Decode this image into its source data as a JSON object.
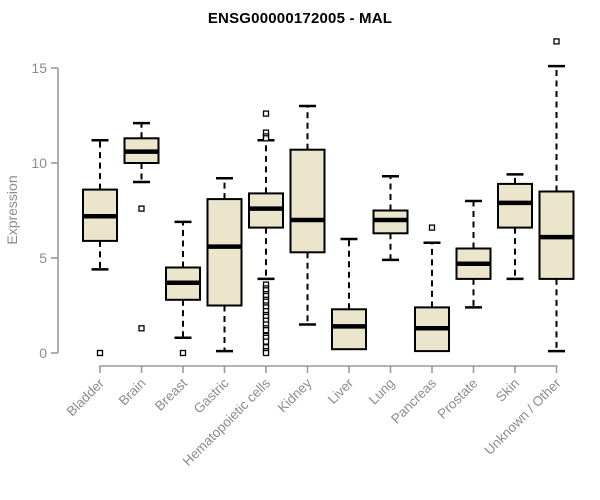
{
  "figure": {
    "title": "ENSG00000172005 - MAL",
    "background": "#ffffff"
  },
  "chart_data": {
    "type": "boxplot",
    "title": "ENSG00000172005 - MAL",
    "xlabel": "",
    "ylabel": "Expression",
    "ylim": [
      0,
      15
    ],
    "y_ticks": [
      0,
      5,
      10,
      15
    ],
    "grid": false,
    "legend": "none",
    "box_fill": "#ebe5cb",
    "box_stroke": "#000000",
    "median_color": "#000000",
    "whisker_color": "#000000",
    "outlier_color": "#000000",
    "axis_color": "#9a9a9a",
    "label_color": "#8c8c8c",
    "title_color": "#000000",
    "categories": [
      "Bladder",
      "Brain",
      "Breast",
      "Gastric",
      "Hematopoietic cells",
      "Kidney",
      "Liver",
      "Lung",
      "Pancreas",
      "Prostate",
      "Skin",
      "Unknown / Other"
    ],
    "series": [
      {
        "label": "Bladder",
        "whisker_low": 4.4,
        "q1": 5.9,
        "median": 7.2,
        "q3": 8.6,
        "whisker_high": 11.2,
        "outliers": [
          0.0
        ]
      },
      {
        "label": "Brain",
        "whisker_low": 9.0,
        "q1": 10.0,
        "median": 10.6,
        "q3": 11.3,
        "whisker_high": 12.1,
        "outliers": [
          7.6,
          1.3
        ]
      },
      {
        "label": "Breast",
        "whisker_low": 0.8,
        "q1": 2.8,
        "median": 3.7,
        "q3": 4.5,
        "whisker_high": 6.9,
        "outliers": [
          0.0
        ]
      },
      {
        "label": "Gastric",
        "whisker_low": 0.1,
        "q1": 2.5,
        "median": 5.6,
        "q3": 8.1,
        "whisker_high": 9.2,
        "outliers": []
      },
      {
        "label": "Hematopoietic cells",
        "whisker_low": 3.9,
        "q1": 6.6,
        "median": 7.6,
        "q3": 8.4,
        "whisker_high": 11.2,
        "outliers": [
          12.6,
          11.6,
          11.4,
          11.3,
          3.6,
          3.4,
          3.3,
          3.1,
          3.0,
          2.8,
          2.7,
          2.5,
          2.4,
          2.2,
          2.0,
          1.9,
          1.7,
          1.5,
          1.3,
          1.2,
          0.9,
          0.8,
          0.6,
          0.3,
          0.1,
          0.0
        ]
      },
      {
        "label": "Kidney",
        "whisker_low": 1.5,
        "q1": 5.3,
        "median": 7.0,
        "q3": 10.7,
        "whisker_high": 13.0,
        "outliers": []
      },
      {
        "label": "Liver",
        "whisker_low": 0.2,
        "q1": 0.2,
        "median": 1.4,
        "q3": 2.3,
        "whisker_high": 6.0,
        "outliers": []
      },
      {
        "label": "Lung",
        "whisker_low": 4.9,
        "q1": 6.3,
        "median": 7.0,
        "q3": 7.5,
        "whisker_high": 9.3,
        "outliers": []
      },
      {
        "label": "Pancreas",
        "whisker_low": 0.1,
        "q1": 0.1,
        "median": 1.3,
        "q3": 2.4,
        "whisker_high": 5.8,
        "outliers": [
          6.6
        ]
      },
      {
        "label": "Prostate",
        "whisker_low": 2.4,
        "q1": 3.9,
        "median": 4.7,
        "q3": 5.5,
        "whisker_high": 8.0,
        "outliers": []
      },
      {
        "label": "Skin",
        "whisker_low": 3.9,
        "q1": 6.6,
        "median": 7.9,
        "q3": 8.9,
        "whisker_high": 9.4,
        "outliers": []
      },
      {
        "label": "Unknown / Other",
        "whisker_low": 0.1,
        "q1": 3.9,
        "median": 6.1,
        "q3": 8.5,
        "whisker_high": 15.1,
        "outliers": [
          16.4
        ]
      }
    ]
  }
}
